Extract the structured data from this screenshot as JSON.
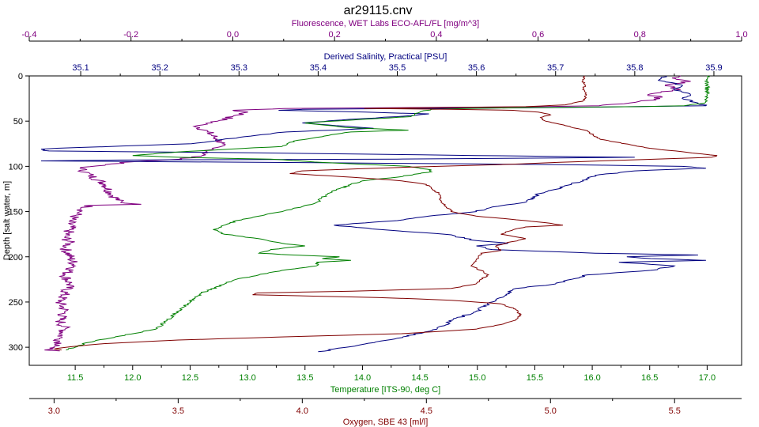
{
  "chart_data": {
    "type": "line",
    "title": "ar29115.cnv",
    "depth_axis": {
      "label": "Depth [salt water, m]",
      "range": [
        0,
        320
      ],
      "ticks": [
        0,
        50,
        100,
        150,
        200,
        250,
        300
      ],
      "inverted": true,
      "color": "#000000"
    },
    "axes": [
      {
        "id": "fluorescence",
        "label": "Fluorescence, WET Labs ECO-AFL/FL [mg/m^3]",
        "position": "top",
        "range": [
          -0.4,
          1.0
        ],
        "ticks": [
          -0.4,
          -0.2,
          0.0,
          0.2,
          0.4,
          0.6,
          0.8,
          1.0
        ],
        "tick_labels": [
          "-0.4",
          "-0.2",
          "0.0",
          "0.2",
          "0.4",
          "0.6",
          "0.8",
          "1.0"
        ],
        "color": "#800080"
      },
      {
        "id": "salinity",
        "label": "Derived Salinity, Practical [PSU]",
        "position": "top",
        "range": [
          35.035,
          35.935
        ],
        "ticks": [
          35.1,
          35.2,
          35.3,
          35.4,
          35.5,
          35.6,
          35.7,
          35.8,
          35.9
        ],
        "tick_labels": [
          "35.1",
          "35.2",
          "35.3",
          "35.4",
          "35.5",
          "35.6",
          "35.7",
          "35.8",
          "35.9"
        ],
        "color": "#000080"
      },
      {
        "id": "temperature",
        "label": "Temperature [ITS-90, deg C]",
        "position": "bottom",
        "range": [
          11.1,
          17.3
        ],
        "ticks": [
          11.5,
          12.0,
          12.5,
          13.0,
          13.5,
          14.0,
          14.5,
          15.0,
          15.5,
          16.0,
          16.5,
          17.0
        ],
        "tick_labels": [
          "11.5",
          "12.0",
          "12.5",
          "13.0",
          "13.5",
          "14.0",
          "14.5",
          "15.0",
          "15.5",
          "16.0",
          "16.5",
          "17.0"
        ],
        "color": "#008000"
      },
      {
        "id": "oxygen",
        "label": "Oxygen, SBE 43 [ml/l]",
        "position": "bottom",
        "range": [
          2.9,
          5.77
        ],
        "ticks": [
          3.0,
          3.5,
          4.0,
          4.5,
          5.0,
          5.5
        ],
        "tick_labels": [
          "3.0",
          "3.5",
          "4.0",
          "4.5",
          "5.0",
          "5.5"
        ],
        "color": "#800000"
      }
    ],
    "series": [
      {
        "axis": "fluorescence",
        "color": "#800080",
        "jitter": 0.012,
        "points": [
          [
            0,
            0.88
          ],
          [
            3,
            0.87
          ],
          [
            6,
            0.9
          ],
          [
            10,
            0.85
          ],
          [
            15,
            0.88
          ],
          [
            20,
            0.82
          ],
          [
            25,
            0.84
          ],
          [
            30,
            0.78
          ],
          [
            33,
            0.72
          ],
          [
            34,
            0.6
          ],
          [
            35,
            0.35
          ],
          [
            36,
            0.1
          ],
          [
            38,
            0.0
          ],
          [
            40,
            0.03
          ],
          [
            45,
            0.0
          ],
          [
            50,
            -0.03
          ],
          [
            55,
            -0.07
          ],
          [
            62,
            -0.05
          ],
          [
            70,
            -0.03
          ],
          [
            75,
            -0.02
          ],
          [
            80,
            -0.04
          ],
          [
            85,
            -0.05
          ],
          [
            88,
            -0.06
          ],
          [
            92,
            -0.1
          ],
          [
            95,
            -0.2
          ],
          [
            98,
            -0.25
          ],
          [
            102,
            -0.3
          ],
          [
            110,
            -0.28
          ],
          [
            120,
            -0.25
          ],
          [
            130,
            -0.24
          ],
          [
            140,
            -0.22
          ],
          [
            142,
            -0.18
          ],
          [
            143,
            -0.28
          ],
          [
            150,
            -0.3
          ],
          [
            160,
            -0.32
          ],
          [
            170,
            -0.32
          ],
          [
            178,
            -0.33
          ],
          [
            185,
            -0.32
          ],
          [
            190,
            -0.33
          ],
          [
            200,
            -0.32
          ],
          [
            210,
            -0.31
          ],
          [
            220,
            -0.33
          ],
          [
            230,
            -0.32
          ],
          [
            240,
            -0.33
          ],
          [
            250,
            -0.34
          ],
          [
            260,
            -0.33
          ],
          [
            270,
            -0.34
          ],
          [
            280,
            -0.33
          ],
          [
            290,
            -0.34
          ],
          [
            298,
            -0.34
          ],
          [
            301,
            -0.36
          ],
          [
            303,
            -0.37
          ],
          [
            304,
            -0.34
          ]
        ]
      },
      {
        "axis": "salinity",
        "color": "#000080",
        "jitter": 0.004,
        "points": [
          [
            0,
            35.84
          ],
          [
            5,
            35.83
          ],
          [
            10,
            35.86
          ],
          [
            15,
            35.85
          ],
          [
            20,
            35.87
          ],
          [
            25,
            35.86
          ],
          [
            30,
            35.88
          ],
          [
            33,
            35.89
          ],
          [
            35,
            35.7
          ],
          [
            36,
            35.52
          ],
          [
            37,
            35.38
          ],
          [
            38,
            35.35
          ],
          [
            40,
            35.46
          ],
          [
            42,
            35.54
          ],
          [
            45,
            35.5
          ],
          [
            48,
            35.44
          ],
          [
            52,
            35.38
          ],
          [
            58,
            35.47
          ],
          [
            62,
            35.36
          ],
          [
            68,
            35.3
          ],
          [
            75,
            35.24
          ],
          [
            80,
            35.07
          ],
          [
            81,
            35.05
          ],
          [
            83,
            35.06
          ],
          [
            85,
            35.32
          ],
          [
            88,
            35.6
          ],
          [
            90,
            35.8
          ],
          [
            92,
            35.5
          ],
          [
            93,
            35.15
          ],
          [
            94,
            35.05
          ],
          [
            96,
            35.4
          ],
          [
            98,
            35.7
          ],
          [
            100,
            35.86
          ],
          [
            102,
            35.89
          ],
          [
            105,
            35.8
          ],
          [
            110,
            35.75
          ],
          [
            120,
            35.72
          ],
          [
            130,
            35.68
          ],
          [
            140,
            35.66
          ],
          [
            145,
            35.62
          ],
          [
            150,
            35.6
          ],
          [
            155,
            35.54
          ],
          [
            160,
            35.5
          ],
          [
            165,
            35.42
          ],
          [
            170,
            35.48
          ],
          [
            175,
            35.56
          ],
          [
            182,
            35.6
          ],
          [
            185,
            35.64
          ],
          [
            188,
            35.6
          ],
          [
            192,
            35.62
          ],
          [
            196,
            35.75
          ],
          [
            198,
            35.88
          ],
          [
            200,
            35.79
          ],
          [
            202,
            35.82
          ],
          [
            204,
            35.89
          ],
          [
            206,
            35.78
          ],
          [
            210,
            35.85
          ],
          [
            215,
            35.82
          ],
          [
            220,
            35.74
          ],
          [
            225,
            35.72
          ],
          [
            230,
            35.7
          ],
          [
            235,
            35.65
          ],
          [
            240,
            35.64
          ],
          [
            250,
            35.62
          ],
          [
            260,
            35.6
          ],
          [
            270,
            35.57
          ],
          [
            280,
            35.55
          ],
          [
            290,
            35.5
          ],
          [
            298,
            35.45
          ],
          [
            305,
            35.4
          ]
        ]
      },
      {
        "axis": "temperature",
        "color": "#008000",
        "jitter": 0.02,
        "points": [
          [
            0,
            17.0
          ],
          [
            5,
            17.0
          ],
          [
            10,
            17.0
          ],
          [
            20,
            17.0
          ],
          [
            30,
            16.98
          ],
          [
            33,
            16.8
          ],
          [
            34,
            16.4
          ],
          [
            35,
            15.5
          ],
          [
            36,
            14.9
          ],
          [
            37,
            14.6
          ],
          [
            40,
            14.5
          ],
          [
            45,
            14.42
          ],
          [
            48,
            14.0
          ],
          [
            52,
            13.5
          ],
          [
            57,
            13.85
          ],
          [
            60,
            14.4
          ],
          [
            62,
            13.9
          ],
          [
            68,
            13.6
          ],
          [
            72,
            13.4
          ],
          [
            78,
            13.3
          ],
          [
            84,
            12.4
          ],
          [
            88,
            12.0
          ],
          [
            90,
            12.4
          ],
          [
            92,
            13.2
          ],
          [
            96,
            13.7
          ],
          [
            100,
            14.4
          ],
          [
            104,
            14.6
          ],
          [
            106,
            14.6
          ],
          [
            108,
            14.5
          ],
          [
            112,
            14.3
          ],
          [
            116,
            14.0
          ],
          [
            120,
            13.9
          ],
          [
            130,
            13.7
          ],
          [
            140,
            13.6
          ],
          [
            150,
            13.3
          ],
          [
            160,
            12.9
          ],
          [
            170,
            12.7
          ],
          [
            175,
            12.8
          ],
          [
            180,
            13.1
          ],
          [
            185,
            13.3
          ],
          [
            188,
            13.5
          ],
          [
            192,
            13.2
          ],
          [
            196,
            13.1
          ],
          [
            198,
            13.4
          ],
          [
            200,
            13.8
          ],
          [
            202,
            13.65
          ],
          [
            204,
            13.9
          ],
          [
            206,
            13.6
          ],
          [
            210,
            13.6
          ],
          [
            215,
            13.3
          ],
          [
            220,
            13.1
          ],
          [
            225,
            12.9
          ],
          [
            230,
            12.8
          ],
          [
            240,
            12.6
          ],
          [
            250,
            12.5
          ],
          [
            260,
            12.4
          ],
          [
            270,
            12.3
          ],
          [
            280,
            12.2
          ],
          [
            290,
            11.8
          ],
          [
            295,
            11.6
          ],
          [
            300,
            11.5
          ],
          [
            303,
            11.42
          ]
        ]
      },
      {
        "axis": "oxygen",
        "color": "#800000",
        "jitter": 0.006,
        "points": [
          [
            0,
            5.14
          ],
          [
            5,
            5.13
          ],
          [
            10,
            5.14
          ],
          [
            15,
            5.13
          ],
          [
            20,
            5.14
          ],
          [
            25,
            5.14
          ],
          [
            28,
            5.13
          ],
          [
            30,
            5.09
          ],
          [
            32,
            5.06
          ],
          [
            34,
            4.9
          ],
          [
            35,
            4.55
          ],
          [
            36,
            4.25
          ],
          [
            37,
            4.6
          ],
          [
            38,
            4.85
          ],
          [
            40,
            4.95
          ],
          [
            43,
            5.0
          ],
          [
            46,
            4.96
          ],
          [
            50,
            4.98
          ],
          [
            55,
            5.06
          ],
          [
            60,
            5.14
          ],
          [
            70,
            5.2
          ],
          [
            80,
            5.4
          ],
          [
            86,
            5.6
          ],
          [
            88,
            5.67
          ],
          [
            90,
            5.65
          ],
          [
            94,
            5.2
          ],
          [
            98,
            4.8
          ],
          [
            102,
            4.3
          ],
          [
            105,
            4.0
          ],
          [
            108,
            3.95
          ],
          [
            112,
            4.2
          ],
          [
            116,
            4.4
          ],
          [
            120,
            4.5
          ],
          [
            130,
            4.55
          ],
          [
            140,
            4.56
          ],
          [
            145,
            4.58
          ],
          [
            148,
            4.6
          ],
          [
            150,
            4.6
          ],
          [
            155,
            4.7
          ],
          [
            160,
            4.9
          ],
          [
            163,
            5.0
          ],
          [
            165,
            5.05
          ],
          [
            167,
            4.9
          ],
          [
            170,
            4.85
          ],
          [
            175,
            4.8
          ],
          [
            180,
            4.9
          ],
          [
            185,
            4.82
          ],
          [
            188,
            4.78
          ],
          [
            190,
            4.79
          ],
          [
            193,
            4.8
          ],
          [
            196,
            4.72
          ],
          [
            200,
            4.71
          ],
          [
            205,
            4.7
          ],
          [
            210,
            4.68
          ],
          [
            215,
            4.72
          ],
          [
            220,
            4.75
          ],
          [
            225,
            4.72
          ],
          [
            230,
            4.7
          ],
          [
            235,
            4.6
          ],
          [
            238,
            4.2
          ],
          [
            240,
            3.82
          ],
          [
            242,
            3.8
          ],
          [
            245,
            4.3
          ],
          [
            248,
            4.6
          ],
          [
            252,
            4.8
          ],
          [
            258,
            4.86
          ],
          [
            265,
            4.88
          ],
          [
            270,
            4.86
          ],
          [
            275,
            4.8
          ],
          [
            280,
            4.7
          ],
          [
            285,
            4.4
          ],
          [
            288,
            4.0
          ],
          [
            292,
            3.5
          ],
          [
            296,
            3.2
          ],
          [
            300,
            3.05
          ],
          [
            302,
            3.0
          ],
          [
            303,
            3.03
          ]
        ]
      }
    ],
    "grid": false
  }
}
